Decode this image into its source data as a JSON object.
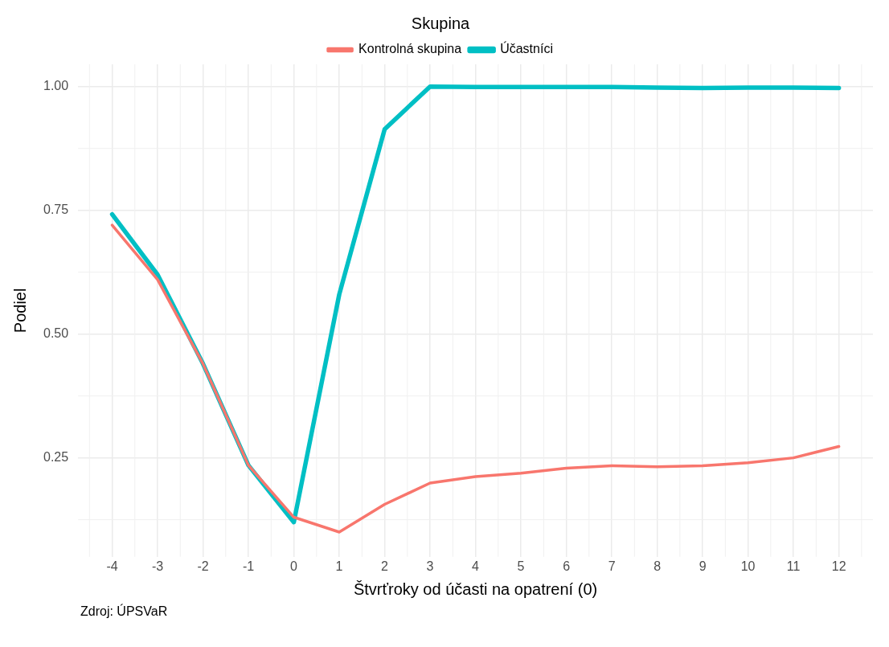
{
  "chart_data": {
    "type": "line",
    "xlabel": "Štvrťroky od účasti na opatrení (0)",
    "ylabel": "Podiel",
    "legend_title": "Skupina",
    "legend": "top",
    "grid": true,
    "x": [
      -4,
      -3,
      -2,
      -1,
      0,
      1,
      2,
      3,
      4,
      5,
      6,
      7,
      8,
      9,
      10,
      11,
      12
    ],
    "series": [
      {
        "name": "Kontrolná skupina",
        "color": "#f8766d",
        "values": [
          0.72,
          0.61,
          0.44,
          0.235,
          0.13,
          0.1,
          0.156,
          0.199,
          0.212,
          0.219,
          0.229,
          0.234,
          0.232,
          0.234,
          0.24,
          0.25,
          0.273
        ]
      },
      {
        "name": "Účastníci",
        "color": "#00bfc4",
        "values": [
          0.742,
          0.62,
          0.44,
          0.235,
          0.12,
          0.58,
          0.914,
          1.0,
          0.999,
          0.999,
          0.999,
          0.999,
          0.998,
          0.997,
          0.998,
          0.998,
          0.997
        ]
      }
    ],
    "xlim": [
      -4.75,
      12.75
    ],
    "xticks": [
      -4,
      -3,
      -2,
      -1,
      0,
      1,
      2,
      3,
      4,
      5,
      6,
      7,
      8,
      9,
      10,
      11,
      12
    ],
    "ylim": [
      0.05,
      1.045
    ],
    "yticks": [
      {
        "value": 0.25,
        "label": "0.25"
      },
      {
        "value": 0.5,
        "label": "0.50"
      },
      {
        "value": 0.75,
        "label": "0.75"
      },
      {
        "value": 1,
        "label": "1.00"
      }
    ],
    "annotations": [
      "Zdroj: ÚPSVaR"
    ],
    "line_style": "solid"
  }
}
